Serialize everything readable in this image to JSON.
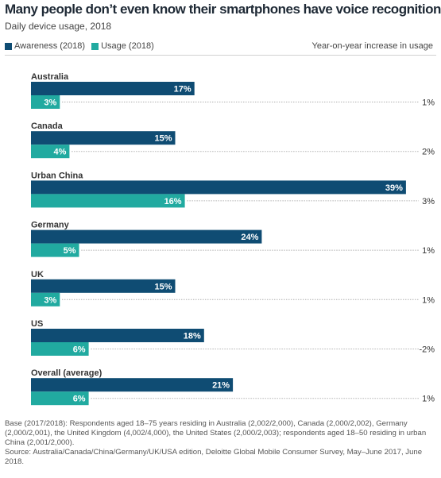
{
  "header": {
    "title": "Many people don’t even know their smartphones have voice recognition",
    "subtitle": "Daily device usage, 2018"
  },
  "legend": {
    "awareness_label": "Awareness (2018)",
    "usage_label": "Usage (2018)",
    "yoy_label": "Year-on-year increase in usage"
  },
  "colors": {
    "awareness": "#0f4c73",
    "usage": "#21aaa0",
    "category_label": "#333333",
    "dotted_leader": "#8a8a8a"
  },
  "chart_data": {
    "type": "bar",
    "orientation": "horizontal",
    "title": "Many people don’t even know their smartphones have voice recognition",
    "subtitle": "Daily device usage, 2018",
    "categories": [
      "Australia",
      "Canada",
      "Urban China",
      "Germany",
      "UK",
      "US",
      "Overall (average)"
    ],
    "series": [
      {
        "name": "Awareness (2018)",
        "values": [
          17,
          15,
          39,
          24,
          15,
          18,
          21
        ],
        "labels": [
          "17%",
          "15%",
          "39%",
          "24%",
          "15%",
          "18%",
          "21%"
        ]
      },
      {
        "name": "Usage (2018)",
        "values": [
          3,
          4,
          16,
          5,
          3,
          6,
          6
        ],
        "labels": [
          "3%",
          "4%",
          "16%",
          "5%",
          "3%",
          "6%",
          "6%"
        ]
      }
    ],
    "yoy_increase": {
      "name": "Year-on-year increase in usage",
      "labels": [
        "1%",
        "2%",
        "3%",
        "1%",
        "1%",
        "-2%",
        "1%"
      ]
    },
    "xlim": [
      0,
      40
    ],
    "grid": false,
    "legend_position": "top-left"
  },
  "footnote": {
    "base": "Base (2017/2018): Respondents aged 18–75 years residing in Australia (2,002/2,000), Canada (2,000/2,002), Germany (2,000/2,001), the United Kingdom (4,002/4,000), the United States (2,000/2,003); respondents aged 18–50 residing in urban China (2,001/2,000).",
    "source": "Source: Australia/Canada/China/Germany/UK/USA edition, Deloitte Global Mobile Consumer Survey, May–June 2017, June 2018."
  }
}
